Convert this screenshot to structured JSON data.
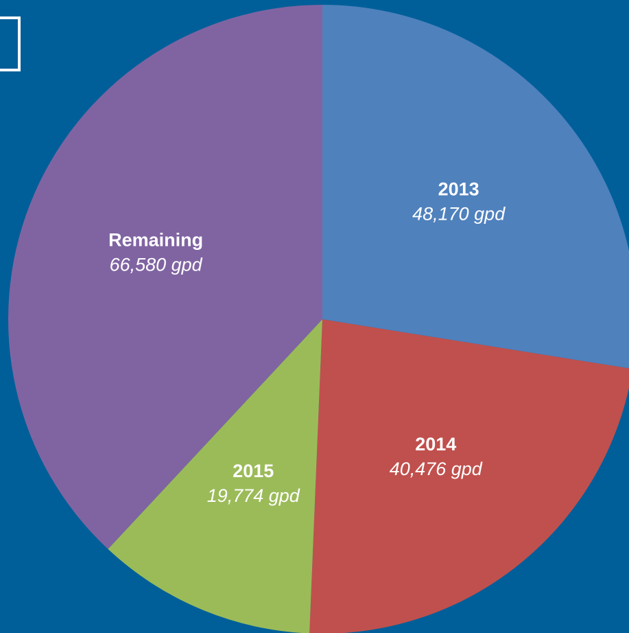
{
  "chart_data": {
    "type": "pie",
    "categories": [
      "2013",
      "2014",
      "2015",
      "Remaining"
    ],
    "values": [
      48170,
      40476,
      19774,
      66580
    ],
    "value_labels": [
      "48,170 gpd",
      "40,476 gpd",
      "19,774 gpd",
      "66,580 gpd"
    ],
    "colors": [
      "#4f81bd",
      "#c0504d",
      "#9bbb59",
      "#8064a2"
    ]
  }
}
